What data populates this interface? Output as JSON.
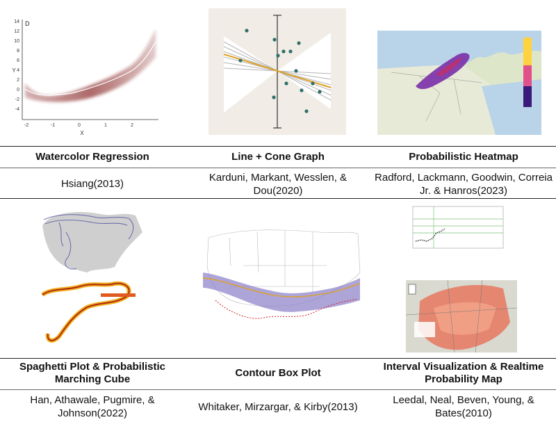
{
  "row1": {
    "titles": [
      "Watercolor Regression",
      "Line + Cone Graph",
      "Probabilistic Heatmap"
    ],
    "citations": [
      "Hsiang(2013)",
      "Karduni, Markant, Wesslen, &\nDou(2020)",
      "Radford, Lackmann, Goodwin, Correia\nJr. & Hanros(2023)"
    ]
  },
  "row2": {
    "titles": [
      "Spaghetti Plot & Probabilistic\nMarching Cube",
      "Contour Box Plot",
      "Interval Visualization & Realtime\nProbability Map"
    ],
    "citations": [
      "Han, Athawale, Pugmire, &\nJohnson(2022)",
      "Whitaker, Mirzargar, & Kirby(2013)",
      "Leedal, Neal, Beven, Young, &\nBates(2010)"
    ]
  },
  "watercolor": {
    "panel_label": "D",
    "xlabel": "X",
    "ylabel": "Y",
    "yticks": [
      "14",
      "12",
      "10",
      "8",
      "6",
      "4",
      "2",
      "0",
      "-2",
      "-4"
    ],
    "xticks": [
      "-2",
      "-1",
      "0",
      "1",
      "2"
    ]
  },
  "colors": {
    "rule": "#222222",
    "watercolor": "#8b2a2a",
    "cone": "#2f6f6a",
    "heat": "#7a2fa8"
  }
}
